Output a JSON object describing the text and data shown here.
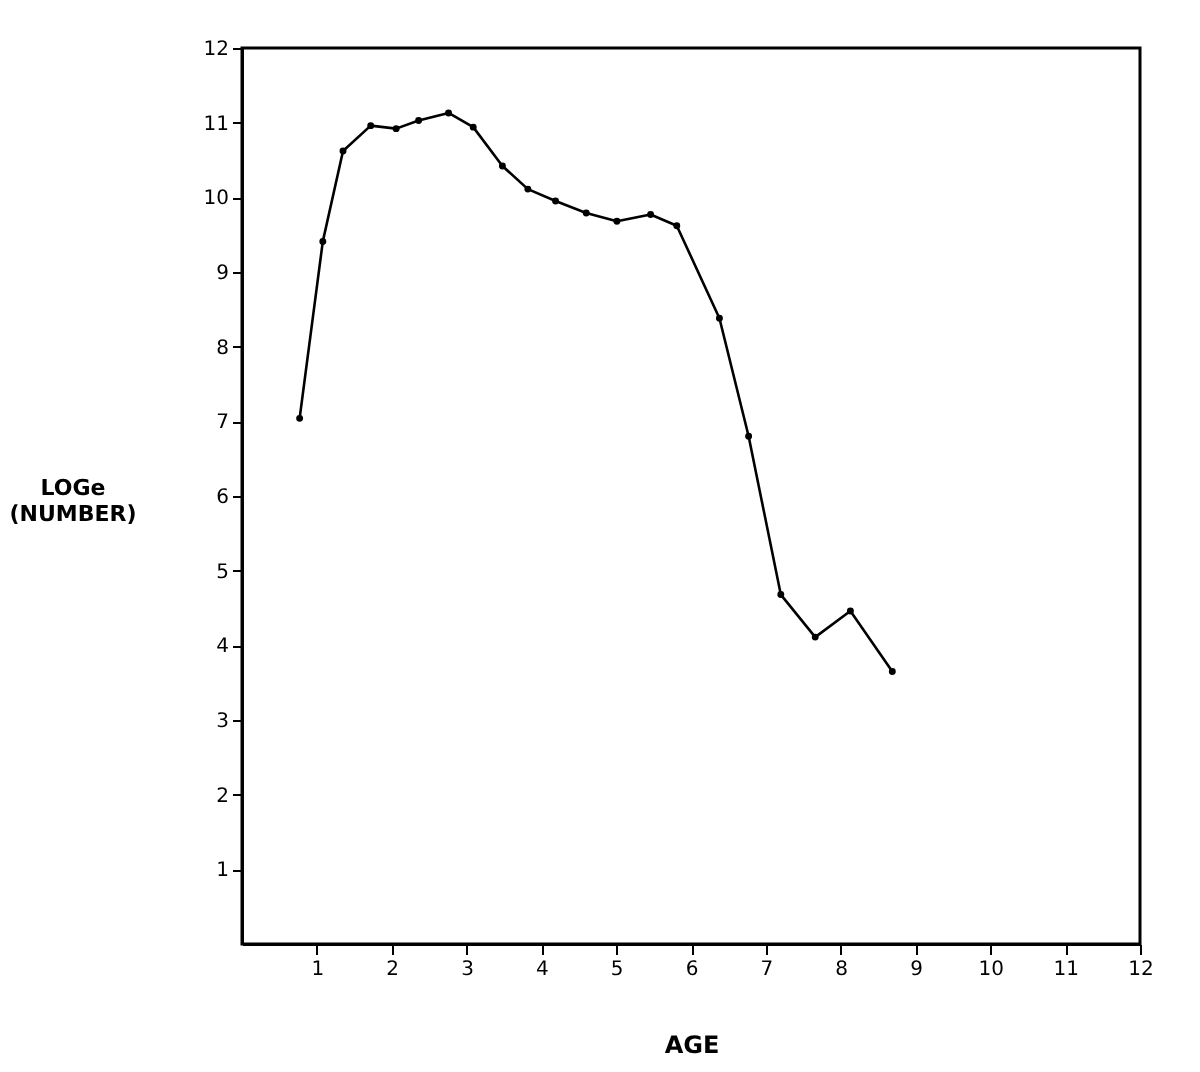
{
  "chart_data": {
    "type": "line",
    "xlabel": "AGE",
    "ylabel": "LOGe (NUMBER)",
    "x": [
      0.77,
      1.08,
      1.35,
      1.72,
      2.06,
      2.36,
      2.76,
      3.09,
      3.48,
      3.82,
      4.19,
      4.6,
      5.01,
      5.46,
      5.81,
      6.38,
      6.77,
      7.2,
      7.66,
      8.13,
      8.69
    ],
    "series": [
      {
        "color": "#000000",
        "values": [
          7.04,
          9.41,
          10.62,
          10.96,
          10.92,
          11.03,
          11.13,
          10.94,
          10.42,
          10.11,
          9.95,
          9.79,
          9.68,
          9.77,
          9.62,
          8.38,
          6.8,
          4.68,
          4.11,
          4.46,
          3.65
        ]
      }
    ],
    "xlim": [
      0,
      12
    ],
    "xticks": [
      1,
      2,
      3,
      4,
      5,
      6,
      7,
      8,
      9,
      10,
      11,
      12
    ],
    "ylim": [
      0,
      12
    ],
    "yticks": [
      1,
      2,
      3,
      4,
      5,
      6,
      7,
      8,
      9,
      10,
      11,
      12
    ],
    "grid": false,
    "marker": "circle",
    "line_style": "solid"
  }
}
